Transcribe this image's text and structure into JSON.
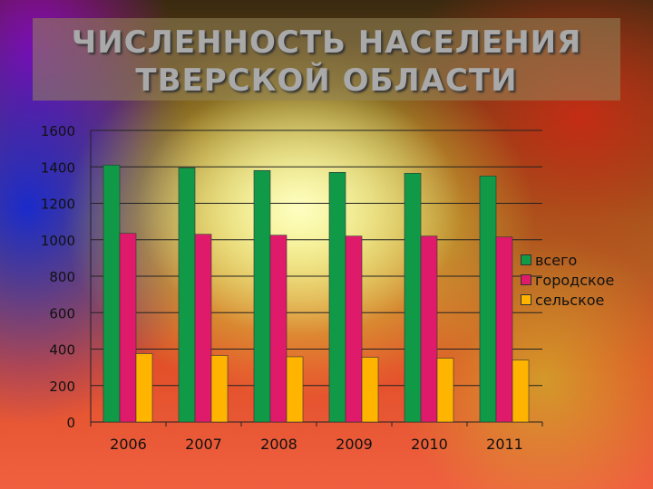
{
  "chart_data": {
    "type": "bar",
    "title_lines": [
      "ЧИСЛЕННОСТЬ НАСЕЛЕНИЯ",
      "ТВЕРСКОЙ ОБЛАСТИ"
    ],
    "categories": [
      "2006",
      "2007",
      "2008",
      "2009",
      "2010",
      "2011"
    ],
    "series": [
      {
        "name": "всего",
        "color": "#109a48",
        "values": [
          1410,
          1395,
          1380,
          1370,
          1365,
          1350
        ]
      },
      {
        "name": "городское",
        "color": "#e01a6a",
        "values": [
          1035,
          1030,
          1025,
          1020,
          1020,
          1015
        ]
      },
      {
        "name": "сельское",
        "color": "#ffb400",
        "values": [
          375,
          365,
          358,
          355,
          350,
          340
        ]
      }
    ],
    "yticks": [
      "0",
      "200",
      "400",
      "600",
      "800",
      "1000",
      "1200",
      "1400",
      "1600"
    ],
    "ylim": [
      0,
      1600
    ],
    "grid": true,
    "legend_position": "right"
  }
}
